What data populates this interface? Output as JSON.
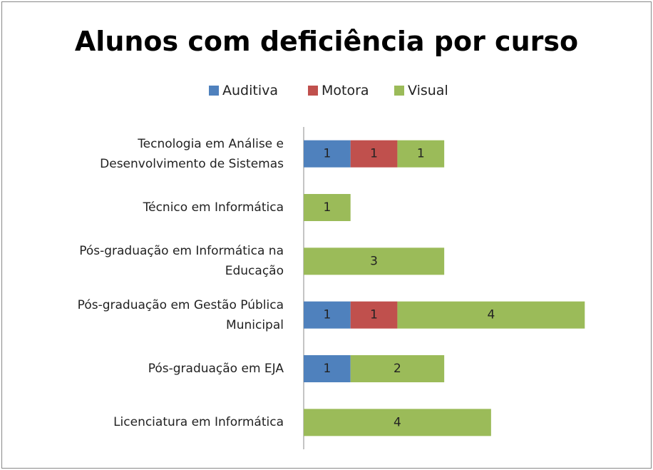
{
  "chart_data": {
    "type": "stacked_bar_horizontal",
    "title": "Alunos com deficiência por curso",
    "categories": [
      "Tecnologia em Análise e Desenvolvimento de Sistemas",
      "Técnico em Informática",
      "Pós-graduação em Informática na Educação",
      "Pós-graduação em Gestão Pública Municipal",
      "Pós-graduação em EJA",
      "Licenciatura em Informática"
    ],
    "series": [
      {
        "name": "Auditiva",
        "color": "#4f81bd",
        "values": [
          1,
          null,
          null,
          1,
          1,
          null
        ]
      },
      {
        "name": "Motora",
        "color": "#c0504d",
        "values": [
          1,
          null,
          null,
          1,
          null,
          null
        ]
      },
      {
        "name": "Visual",
        "color": "#9bbb59",
        "values": [
          1,
          1,
          3,
          4,
          2,
          4
        ]
      }
    ],
    "xlim": [
      0,
      7
    ],
    "legend": "top"
  }
}
